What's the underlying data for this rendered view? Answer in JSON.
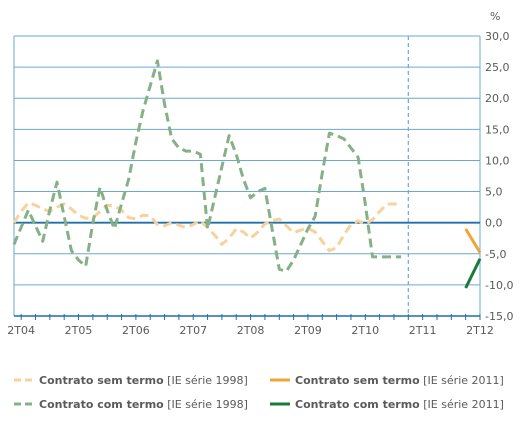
{
  "chart_data": {
    "type": "line",
    "unit_label": "%",
    "ylim": [
      -15,
      30
    ],
    "yticks": [
      30,
      25,
      20,
      15,
      10,
      5,
      0,
      -5,
      -10,
      -15
    ],
    "ytick_labels": [
      "30,0",
      "25,0",
      "20,0",
      "15,0",
      "10,0",
      "5,0",
      "0,0",
      "-5,0",
      "-10,0",
      "-15,0"
    ],
    "xticks": [
      {
        "label": "2T04",
        "q": 0
      },
      {
        "label": "2T05",
        "q": 4
      },
      {
        "label": "2T06",
        "q": 8
      },
      {
        "label": "2T07",
        "q": 12
      },
      {
        "label": "2T08",
        "q": 16
      },
      {
        "label": "2T09",
        "q": 20
      },
      {
        "label": "2T10",
        "q": 24
      },
      {
        "label": "2T11",
        "q": 28
      },
      {
        "label": "2T12",
        "q": 32
      }
    ],
    "grid": true,
    "series_break_q": 27,
    "series": [
      {
        "name_bold": "Contrato sem termo",
        "name_rest": " [IE série 1998]",
        "color": "#f7d29c",
        "style": "dashed",
        "x": [
          -0.5,
          0,
          0.5,
          1,
          1.5,
          2,
          2.5,
          3,
          3.5,
          4,
          4.5,
          5,
          5.5,
          6,
          6.5,
          7,
          7.5,
          8,
          8.5,
          9,
          9.5,
          10,
          10.5,
          11,
          11.5,
          12,
          12.5,
          13,
          13.5,
          14,
          14.5,
          15,
          15.5,
          16,
          16.5,
          17,
          17.5,
          18,
          18.5,
          19,
          19.5,
          20,
          20.5,
          21,
          21.5,
          22,
          22.5,
          23,
          23.5,
          24,
          24.5,
          25,
          25.5,
          26,
          26.5
        ],
        "values": [
          0.0,
          1.8,
          3.2,
          2.8,
          2.2,
          1.8,
          2.5,
          3.0,
          2.2,
          1.2,
          0.7,
          0.8,
          1.8,
          2.8,
          2.7,
          2.0,
          0.8,
          0.6,
          1.2,
          1.1,
          -0.3,
          -0.5,
          0.0,
          -0.4,
          -0.8,
          -0.3,
          0.3,
          -0.8,
          -2.0,
          -3.5,
          -2.5,
          -1.0,
          -1.5,
          -2.5,
          -1.5,
          -0.2,
          0.3,
          0.6,
          -0.5,
          -1.6,
          -1.2,
          -0.9,
          -1.5,
          -3.0,
          -4.5,
          -4.0,
          -2.0,
          -0.3,
          0.3,
          -0.2,
          0.5,
          1.8,
          3.0,
          3.0,
          3.0
        ]
      },
      {
        "name_bold": "Contrato sem termo",
        "name_rest": " [IE série 2011]",
        "color": "#f2a535",
        "style": "solid",
        "x": [
          31,
          32
        ],
        "values": [
          -1.0,
          -4.8
        ]
      },
      {
        "name_bold": "Contrato com termo",
        "name_rest": " [IE série 1998]",
        "color": "#86b086",
        "style": "dashed",
        "x": [
          -0.5,
          0.5,
          1,
          1.5,
          2,
          2.5,
          3,
          3.5,
          4,
          4.5,
          5,
          5.5,
          6,
          6.5,
          7,
          7.5,
          8,
          8.5,
          9,
          9.5,
          10,
          10.5,
          11,
          11.5,
          12,
          12.5,
          13,
          13.5,
          14,
          14.5,
          15,
          15.5,
          16,
          16.5,
          17,
          17.5,
          18,
          18.5,
          19,
          19.5,
          20,
          20.5,
          21,
          21.5,
          22,
          22.5,
          23,
          23.5,
          24,
          24.5,
          25,
          25.5,
          26,
          26.5
        ],
        "values": [
          -3.5,
          2.0,
          -0.5,
          -3.0,
          2.0,
          6.5,
          1.0,
          -4.5,
          -6.0,
          -7.0,
          0.0,
          5.7,
          2.0,
          -1.0,
          3.0,
          7.0,
          13.0,
          18.0,
          22.0,
          26.0,
          19.0,
          13.5,
          12.0,
          11.5,
          11.5,
          11.0,
          -1.0,
          4.0,
          9.0,
          14.0,
          11.0,
          7.0,
          4.0,
          5.0,
          5.5,
          -1.0,
          -7.5,
          -7.8,
          -6.0,
          -3.5,
          -1.0,
          1.0,
          8.0,
          14.4,
          14.0,
          13.5,
          12.0,
          10.5,
          3.0,
          -5.5,
          -5.5,
          -5.5,
          -5.5,
          -5.5
        ]
      },
      {
        "name_bold": "Contrato com termo",
        "name_rest": " [IE série 2011]",
        "color": "#1a7a3a",
        "style": "solid",
        "x": [
          31,
          32
        ],
        "values": [
          -10.5,
          -5.8
        ]
      }
    ]
  }
}
